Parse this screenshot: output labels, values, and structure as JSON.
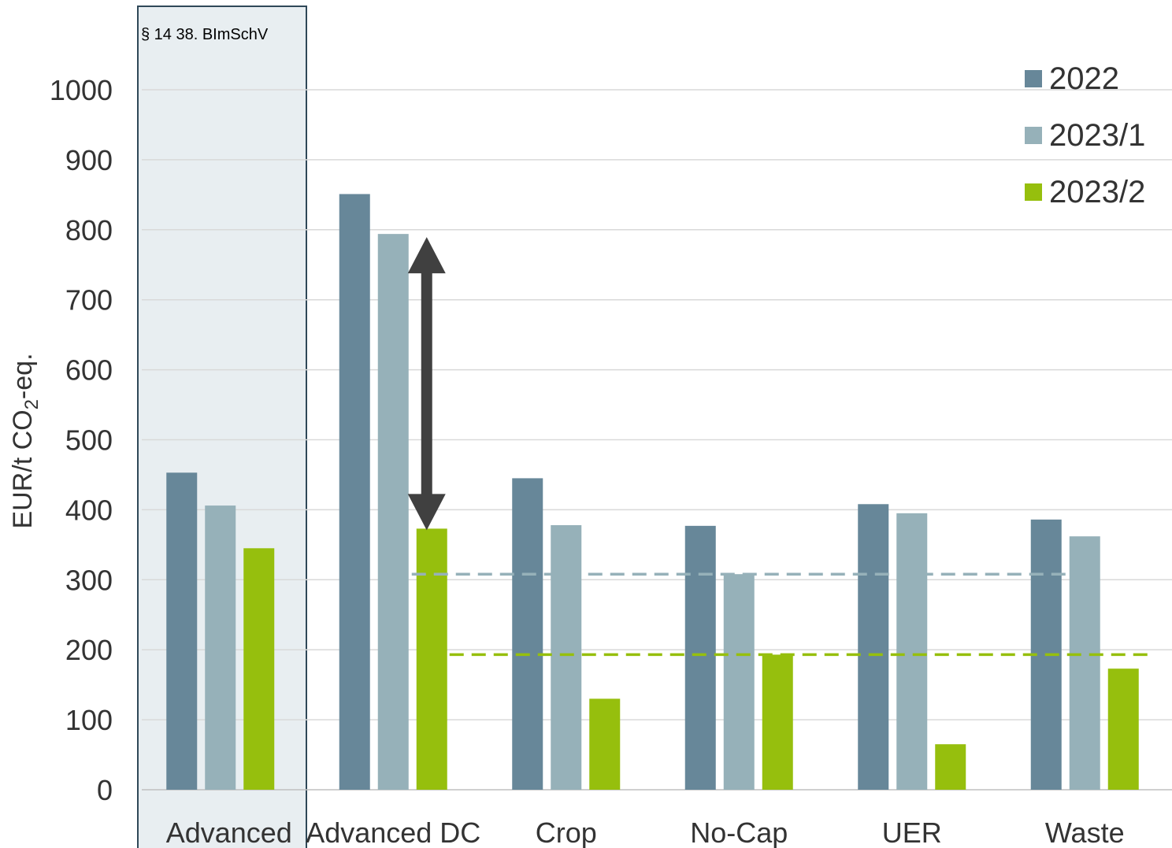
{
  "chart_data": {
    "type": "bar",
    "categories": [
      "Advanced",
      "Advanced DC",
      "Crop",
      "No-Cap",
      "UER",
      "Waste"
    ],
    "series": [
      {
        "name": "2022",
        "color": "#678799",
        "values": [
          453,
          851,
          445,
          377,
          408,
          386
        ]
      },
      {
        "name": "2023/1",
        "color": "#96b1b9",
        "values": [
          406,
          794,
          378,
          308,
          395,
          362
        ]
      },
      {
        "name": "2023/2",
        "color": "#96bf0d",
        "values": [
          345,
          373,
          130,
          193,
          65,
          173
        ]
      }
    ],
    "ylabel_main": "EUR/t CO",
    "ylabel_sub": "2",
    "ylabel_suffix": "-eq.",
    "ylim": [
      0,
      1000
    ],
    "yticks": [
      0,
      100,
      200,
      300,
      400,
      500,
      600,
      700,
      800,
      900,
      1000
    ],
    "grid": true,
    "legend_position": "top-right",
    "highlight_box": {
      "label": "§ 14 38. BImSchV",
      "category": "Advanced",
      "fill": "#e8eef1",
      "border": "#2f4858"
    },
    "reference_lines": [
      {
        "value": 308,
        "color": "#96b1b9",
        "style": "dashed",
        "from_category": "Advanced DC",
        "to_category": "UER"
      },
      {
        "value": 193,
        "color": "#96bf0d",
        "style": "dashed",
        "from_category": "Advanced DC",
        "to_category": "Waste"
      }
    ],
    "arrow": {
      "category": "Advanced DC",
      "from_value": 794,
      "to_value": 373,
      "color": "#404040"
    }
  }
}
